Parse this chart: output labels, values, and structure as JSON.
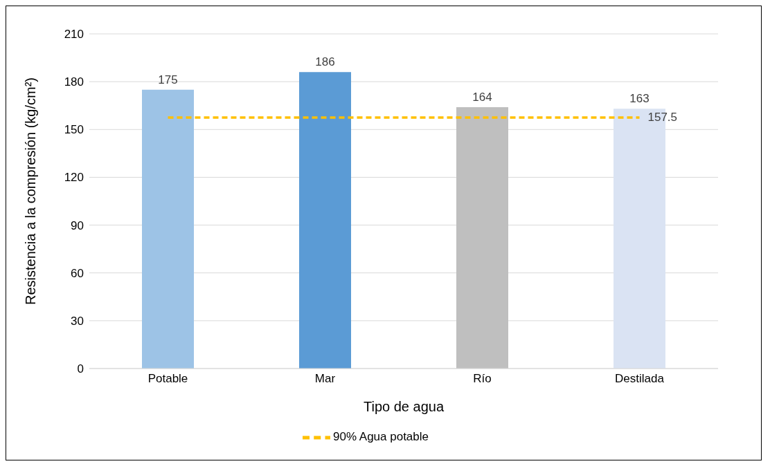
{
  "chart_data": {
    "type": "bar",
    "xlabel": "Tipo de agua",
    "ylabel": "Resistencia a la compresión (kg/cm²)",
    "categories": [
      "Potable",
      "Mar",
      "Río",
      "Destilada"
    ],
    "series": [
      {
        "colors": [
          "#9dc3e6",
          "#5b9bd5",
          "#bfbfbf",
          "#dae3f3"
        ],
        "values": [
          175,
          186,
          164,
          163
        ],
        "value_labels": [
          "175",
          "186",
          "164",
          "163"
        ]
      },
      {
        "type": "line",
        "name": "90% Agua potable",
        "color": "#ffc000",
        "values": [
          157.5,
          157.5,
          157.5,
          157.5
        ],
        "value_labels": [
          null,
          null,
          null,
          "157.5"
        ],
        "line_style": "dashed",
        "marker": "none"
      }
    ],
    "ylim": [
      0,
      210
    ],
    "yticks": [
      0,
      30,
      60,
      90,
      120,
      150,
      180,
      210
    ],
    "grid": "y",
    "legend": "bottom"
  }
}
